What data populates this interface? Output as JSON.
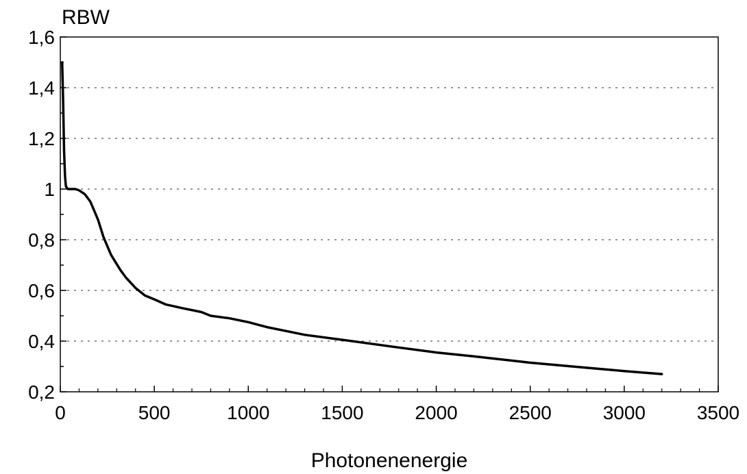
{
  "chart_data": {
    "type": "line",
    "ylabel": "RBW",
    "xlabel": "Photonenenergie",
    "xlim": [
      0,
      3500
    ],
    "ylim": [
      0.2,
      1.6
    ],
    "x_ticks": [
      0,
      500,
      1000,
      1500,
      2000,
      2500,
      3000,
      3500
    ],
    "x_tick_labels": [
      "0",
      "500",
      "1000",
      "1500",
      "2000",
      "2500",
      "3000",
      "3500"
    ],
    "y_ticks": [
      0.2,
      0.4,
      0.6,
      0.8,
      1.0,
      1.2,
      1.4,
      1.6
    ],
    "y_tick_labels": [
      "0,2",
      "0,4",
      "0,6",
      "0,8",
      "1",
      "1,2",
      "1,4",
      "1,6"
    ],
    "grid": "horizontal dotted",
    "series": [
      {
        "color": "#000000",
        "points": [
          [
            10,
            1.5
          ],
          [
            15,
            1.35
          ],
          [
            20,
            1.15
          ],
          [
            25,
            1.05
          ],
          [
            30,
            1.01
          ],
          [
            40,
            1.0
          ],
          [
            60,
            1.0
          ],
          [
            80,
            1.0
          ],
          [
            100,
            0.995
          ],
          [
            130,
            0.98
          ],
          [
            160,
            0.95
          ],
          [
            200,
            0.88
          ],
          [
            230,
            0.81
          ],
          [
            270,
            0.74
          ],
          [
            320,
            0.68
          ],
          [
            350,
            0.65
          ],
          [
            400,
            0.61
          ],
          [
            450,
            0.58
          ],
          [
            500,
            0.565
          ],
          [
            560,
            0.545
          ],
          [
            650,
            0.53
          ],
          [
            750,
            0.515
          ],
          [
            800,
            0.5
          ],
          [
            900,
            0.49
          ],
          [
            1000,
            0.475
          ],
          [
            1100,
            0.455
          ],
          [
            1200,
            0.44
          ],
          [
            1300,
            0.425
          ],
          [
            1500,
            0.405
          ],
          [
            1800,
            0.375
          ],
          [
            2000,
            0.355
          ],
          [
            2200,
            0.34
          ],
          [
            2500,
            0.315
          ],
          [
            2800,
            0.295
          ],
          [
            3000,
            0.282
          ],
          [
            3200,
            0.27
          ]
        ]
      }
    ]
  }
}
